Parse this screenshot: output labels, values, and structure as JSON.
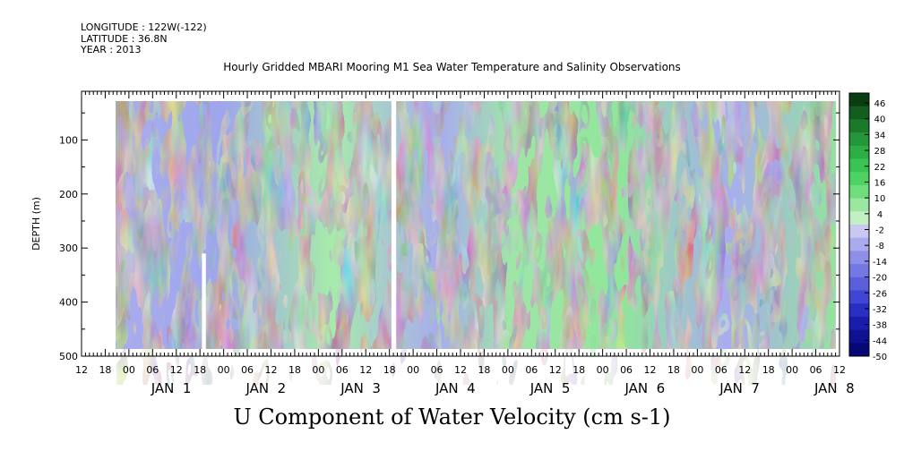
{
  "header": {
    "longitude": "LONGITUDE : 122W(-122)",
    "latitude": "LATITUDE : 36.8N",
    "year": "YEAR : 2013"
  },
  "chart_data": {
    "type": "heatmap",
    "title": "Hourly Gridded MBARI Mooring M1 Sea Water Temperature and Salinity Observations",
    "xlabel": "U Component of Water Velocity (cm s-1)",
    "ylabel": "DEPTH (m)",
    "y_ticks": [
      100,
      200,
      300,
      400,
      500
    ],
    "ylim": [
      10,
      500
    ],
    "x_range_hours": [
      0,
      180
    ],
    "x_hour_labels": [
      "12",
      "18",
      "00",
      "06",
      "12",
      "18",
      "00",
      "06",
      "12",
      "18",
      "00",
      "06",
      "12",
      "18",
      "00",
      "06",
      "12",
      "18",
      "00",
      "06",
      "12",
      "18",
      "00",
      "06",
      "12",
      "18",
      "00",
      "06",
      "12",
      "18",
      "00",
      "06",
      "12"
    ],
    "x_day_labels": [
      {
        "label": "JAN  1",
        "hour": 12
      },
      {
        "label": "JAN  2",
        "hour": 36
      },
      {
        "label": "JAN  3",
        "hour": 60
      },
      {
        "label": "JAN  4",
        "hour": 84
      },
      {
        "label": "JAN  5",
        "hour": 108
      },
      {
        "label": "JAN  6",
        "hour": 132
      },
      {
        "label": "JAN  7",
        "hour": 156
      },
      {
        "label": "JAN  8",
        "hour": 180
      }
    ],
    "colorbar": {
      "labels": [
        "46",
        "40",
        "34",
        "28",
        "22",
        "16",
        "10",
        "4",
        "-2",
        "-8",
        "-14",
        "-20",
        "-26",
        "-32",
        "-38",
        "-44",
        "-50"
      ],
      "colors_top_to_bottom": [
        "#0b3d12",
        "#135e1f",
        "#1b7a2a",
        "#229638",
        "#2cae45",
        "#38c352",
        "#4dd362",
        "#6fdd7c",
        "#9be7a1",
        "#c4efc5",
        "#c8c8f2",
        "#aaaaee",
        "#8e90e8",
        "#7478e2",
        "#5b5fdb",
        "#4046d2",
        "#2a2fc4",
        "#1a1dac",
        "#0e1192",
        "#060878"
      ]
    },
    "gaps": [
      {
        "x_hours": [
          18.5,
          19.5
        ],
        "depth_m": [
          310,
          500
        ]
      },
      {
        "x_hours": [
          66.5,
          67.7
        ],
        "depth_m": [
          10,
          500
        ]
      }
    ]
  }
}
